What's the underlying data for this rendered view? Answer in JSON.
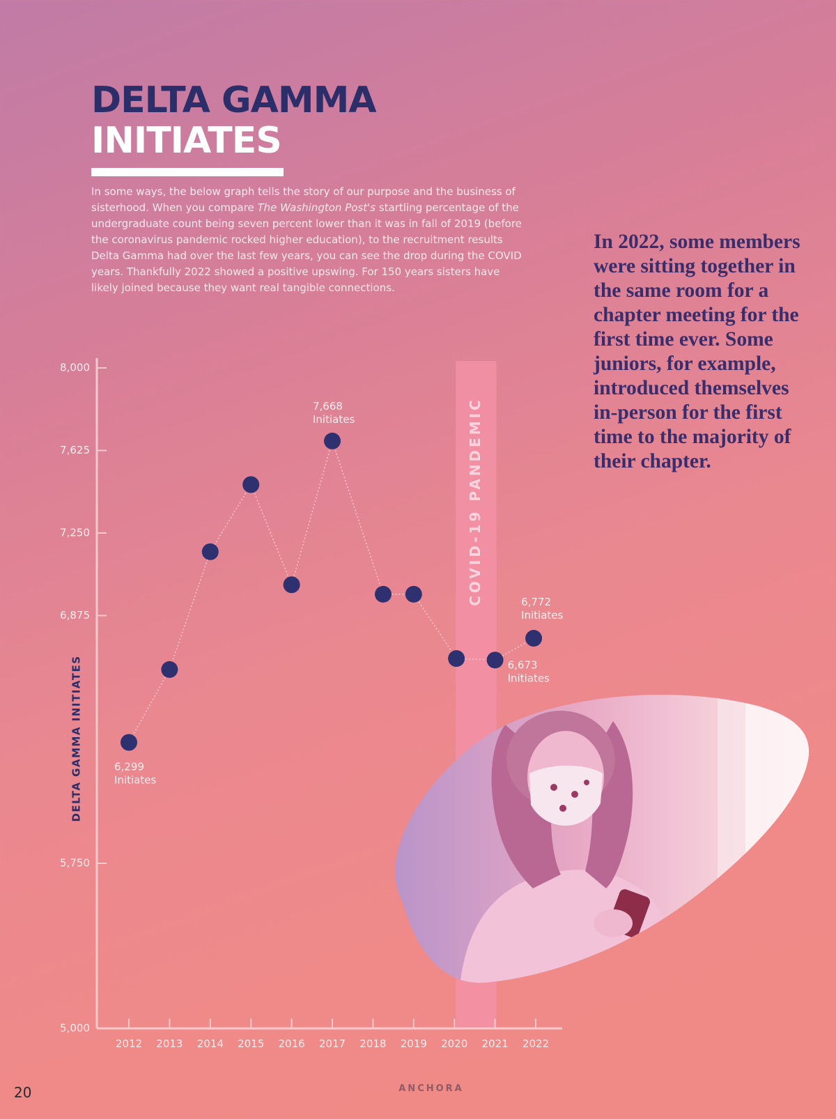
{
  "page": {
    "title_line1": "DELTA GAMMA",
    "title_line2": "INITIATES",
    "intro_text_part1": "In some ways, the below graph tells the story of our purpose and the business of sisterhood. When you compare ",
    "intro_text_italic": "The Washington Post's",
    "intro_text_part2": " startling percentage of the undergraduate count being seven percent lower than it was in fall of 2019 (before the coronavirus pandemic rocked higher education), to the recruitment results Delta Gamma had over the last few years, you can see the drop during the COVID years. Thankfully 2022 showed a positive upswing. For 150 years sisters have likely joined because they want real tangible connections.",
    "pull_quote": "In 2022, some members were sitting together in the same room for a chapter meeting for the first time ever. Some juniors, for example, introduced themselves in-person for the first time to the majority of their chapter.",
    "page_number": "20",
    "footer_brand": "ANCHORA"
  },
  "photo": {
    "description_icon": "masked-woman-with-phone-photo"
  },
  "chart_data": {
    "type": "line",
    "title": "",
    "xlabel": "",
    "ylabel": "DELTA GAMMA INITIATES",
    "x": [
      "2012",
      "2013",
      "2014",
      "2015",
      "2016",
      "2017",
      "2018",
      "2019",
      "2020",
      "2021",
      "2022"
    ],
    "point_years": [
      2012,
      2013,
      2014,
      2015,
      2016,
      2017,
      2018.25,
      2019,
      2020.05,
      2021,
      2021.95
    ],
    "series": [
      {
        "name": "",
        "values": [
          6299,
          6630,
          7165,
          7470,
          7015,
          7668,
          6972,
          6972,
          6680,
          6673,
          6772
        ]
      }
    ],
    "ylim": [
      5000,
      8000
    ],
    "yticks": [
      {
        "value": 8000,
        "label": "8,000"
      },
      {
        "value": 7625,
        "label": "7,625"
      },
      {
        "value": 7250,
        "label": "7,250"
      },
      {
        "value": 6875,
        "label": "6,875"
      },
      {
        "value": 5750,
        "label": "5,750"
      },
      {
        "value": 5000,
        "label": "5,000"
      }
    ],
    "annotations": [
      {
        "index": 0,
        "line1": "6,299",
        "line2": "Initiates",
        "place": "below"
      },
      {
        "index": 5,
        "line1": "7,668",
        "line2": "Initiates",
        "place": "above"
      },
      {
        "index": 9,
        "line1": "6,673",
        "line2": "Initiates",
        "place": "below-right"
      },
      {
        "index": 10,
        "line1": "6,772",
        "line2": "Initiates",
        "place": "above-right"
      }
    ],
    "highlight_band": {
      "from": 2020,
      "to": 2021,
      "label": "COVID-19 PANDEMIC"
    },
    "grid": false,
    "colors": {
      "marker": "#2e3070",
      "line": "#f6c6cf",
      "axis": "#f7c9cd",
      "tick_text": "#fdeef0",
      "band": "#f390a6",
      "band_text": "#fbd3de",
      "ylabel": "#2c2e6a"
    }
  }
}
